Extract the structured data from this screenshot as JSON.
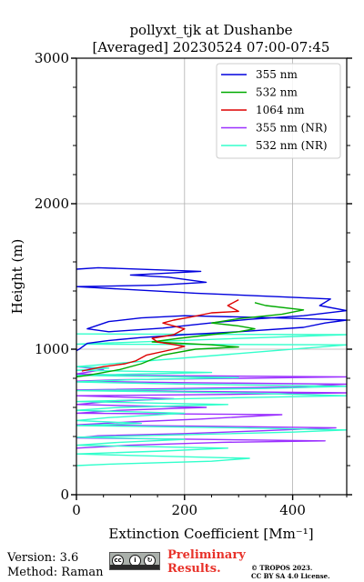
{
  "chart_data": {
    "type": "line",
    "title": "pollyxt_tjk at Dushanbe",
    "subtitle": "[Averaged] 20230524 07:00-07:45",
    "xlabel": "Extinction Coefficient [Mm⁻¹]",
    "ylabel": "Height (m)",
    "xlim": [
      0,
      500
    ],
    "ylim": [
      0,
      3000
    ],
    "xticks": [
      0,
      200,
      400
    ],
    "yticks": [
      0,
      1000,
      2000,
      3000
    ],
    "grid": true,
    "legend_position": "top-right",
    "series": [
      {
        "name": "355 nm",
        "color": "#0000dd",
        "points": [
          [
            0,
            990
          ],
          [
            5,
            1000
          ],
          [
            20,
            1040
          ],
          [
            60,
            1060
          ],
          [
            120,
            1080
          ],
          [
            200,
            1100
          ],
          [
            300,
            1120
          ],
          [
            420,
            1150
          ],
          [
            460,
            1180
          ],
          [
            500,
            1200
          ],
          [
            420,
            1210
          ],
          [
            320,
            1220
          ],
          [
            200,
            1230
          ],
          [
            120,
            1215
          ],
          [
            60,
            1190
          ],
          [
            20,
            1140
          ],
          [
            60,
            1120
          ],
          [
            160,
            1145
          ],
          [
            210,
            1165
          ],
          [
            260,
            1185
          ],
          [
            320,
            1205
          ],
          [
            420,
            1230
          ],
          [
            500,
            1265
          ],
          [
            450,
            1300
          ],
          [
            470,
            1345
          ],
          [
            380,
            1360
          ],
          [
            220,
            1385
          ],
          [
            0,
            1430
          ],
          [
            150,
            1440
          ],
          [
            240,
            1460
          ],
          [
            170,
            1495
          ],
          [
            100,
            1510
          ],
          [
            230,
            1535
          ],
          [
            40,
            1560
          ],
          [
            0,
            1550
          ]
        ]
      },
      {
        "name": "532 nm",
        "color": "#00aa00",
        "points": [
          [
            0,
            810
          ],
          [
            20,
            820
          ],
          [
            80,
            860
          ],
          [
            120,
            900
          ],
          [
            160,
            960
          ],
          [
            220,
            1000
          ],
          [
            300,
            1015
          ],
          [
            250,
            1030
          ],
          [
            140,
            1050
          ],
          [
            190,
            1075
          ],
          [
            250,
            1100
          ],
          [
            300,
            1120
          ],
          [
            330,
            1140
          ],
          [
            300,
            1160
          ],
          [
            250,
            1180
          ],
          [
            300,
            1210
          ],
          [
            380,
            1240
          ],
          [
            420,
            1270
          ],
          [
            350,
            1300
          ],
          [
            330,
            1320
          ]
        ]
      },
      {
        "name": "1064 nm",
        "color": "#dd0000",
        "points": [
          [
            10,
            850
          ],
          [
            50,
            880
          ],
          [
            90,
            900
          ],
          [
            110,
            920
          ],
          [
            130,
            960
          ],
          [
            180,
            1000
          ],
          [
            200,
            1020
          ],
          [
            150,
            1050
          ],
          [
            140,
            1075
          ],
          [
            180,
            1100
          ],
          [
            200,
            1140
          ],
          [
            180,
            1160
          ],
          [
            160,
            1180
          ],
          [
            180,
            1200
          ],
          [
            210,
            1220
          ],
          [
            250,
            1250
          ],
          [
            300,
            1260
          ],
          [
            280,
            1300
          ],
          [
            300,
            1340
          ]
        ]
      },
      {
        "name": "355 nm (NR)",
        "color": "#9b30ff",
        "points": [
          [
            0,
            320
          ],
          [
            100,
            340
          ],
          [
            270,
            360
          ],
          [
            460,
            370
          ],
          [
            240,
            380
          ],
          [
            0,
            390
          ],
          [
            40,
            405
          ],
          [
            200,
            420
          ],
          [
            350,
            440
          ],
          [
            480,
            460
          ],
          [
            250,
            470
          ],
          [
            0,
            480
          ],
          [
            100,
            500
          ],
          [
            230,
            520
          ],
          [
            380,
            550
          ],
          [
            0,
            560
          ],
          [
            80,
            580
          ],
          [
            240,
            600
          ],
          [
            0,
            620
          ],
          [
            60,
            640
          ],
          [
            180,
            660
          ],
          [
            0,
            680
          ],
          [
            300,
            690
          ],
          [
            500,
            700
          ],
          [
            200,
            710
          ],
          [
            0,
            720
          ],
          [
            400,
            740
          ],
          [
            500,
            760
          ],
          [
            200,
            770
          ],
          [
            0,
            780
          ],
          [
            80,
            790
          ],
          [
            300,
            800
          ],
          [
            500,
            810
          ],
          [
            100,
            820
          ],
          [
            0,
            830
          ],
          [
            50,
            860
          ],
          [
            0,
            880
          ]
        ]
      },
      {
        "name": "532 nm (NR)",
        "color": "#33ffcc",
        "points": [
          [
            0,
            200
          ],
          [
            60,
            210
          ],
          [
            250,
            230
          ],
          [
            320,
            250
          ],
          [
            100,
            270
          ],
          [
            0,
            280
          ],
          [
            160,
            300
          ],
          [
            280,
            320
          ],
          [
            0,
            340
          ],
          [
            80,
            360
          ],
          [
            200,
            380
          ],
          [
            0,
            395
          ],
          [
            400,
            430
          ],
          [
            500,
            445
          ],
          [
            300,
            460
          ],
          [
            0,
            475
          ],
          [
            120,
            490
          ],
          [
            0,
            510
          ],
          [
            60,
            530
          ],
          [
            200,
            560
          ],
          [
            0,
            580
          ],
          [
            80,
            600
          ],
          [
            280,
            620
          ],
          [
            0,
            640
          ],
          [
            200,
            660
          ],
          [
            500,
            680
          ],
          [
            300,
            700
          ],
          [
            0,
            715
          ],
          [
            350,
            730
          ],
          [
            500,
            745
          ],
          [
            200,
            760
          ],
          [
            0,
            775
          ],
          [
            100,
            790
          ],
          [
            300,
            805
          ],
          [
            0,
            820
          ],
          [
            250,
            840
          ],
          [
            0,
            855
          ],
          [
            60,
            870
          ],
          [
            0,
            880
          ],
          [
            500,
            1030
          ],
          [
            0,
            1035
          ],
          [
            500,
            1100
          ],
          [
            0,
            1105
          ]
        ]
      }
    ]
  },
  "footer": {
    "version": "Version: 3.6",
    "method": "Method: Raman",
    "license_badge": "cc-by-sa-icon",
    "preliminary_line1": "Preliminary",
    "preliminary_line2": "Results.",
    "copyright_line1": "© TROPOS 2023.",
    "copyright_line2": "CC BY SA 4.0 License."
  }
}
